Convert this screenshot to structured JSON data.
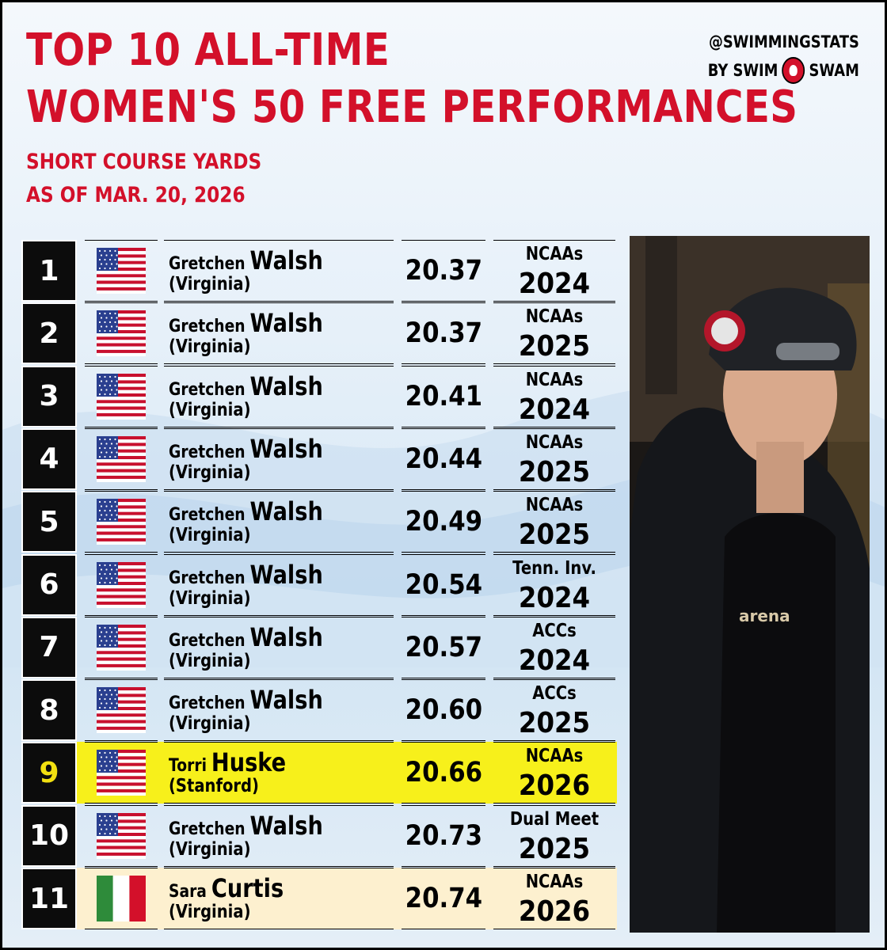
{
  "header": {
    "title_line1": "TOP 10 ALL-TIME",
    "title_line2": "WOMEN'S 50 FREE PERFORMANCES",
    "subtitle_line1": "SHORT COURSE YARDS",
    "subtitle_line2": "AS OF MAR. 20, 2026"
  },
  "brand": {
    "handle": "@SWIMMINGSTATS",
    "by_left": "BY SWIM",
    "by_right": "SWAM"
  },
  "colors": {
    "title": "#d3102a",
    "highlight": "#f7f01b",
    "highlight_alt": "#fdf0cf",
    "rank_bg": "#0c0c0c"
  },
  "rows": [
    {
      "rank": "1",
      "flag": "usa-flag",
      "first": "Gretchen",
      "last": "Walsh",
      "school": "(Virginia)",
      "time": "20.37",
      "meet": "NCAAs",
      "year": "2024"
    },
    {
      "rank": "2",
      "flag": "usa-flag",
      "first": "Gretchen",
      "last": "Walsh",
      "school": "(Virginia)",
      "time": "20.37",
      "meet": "NCAAs",
      "year": "2025"
    },
    {
      "rank": "3",
      "flag": "usa-flag",
      "first": "Gretchen",
      "last": "Walsh",
      "school": "(Virginia)",
      "time": "20.41",
      "meet": "NCAAs",
      "year": "2024"
    },
    {
      "rank": "4",
      "flag": "usa-flag",
      "first": "Gretchen",
      "last": "Walsh",
      "school": "(Virginia)",
      "time": "20.44",
      "meet": "NCAAs",
      "year": "2025"
    },
    {
      "rank": "5",
      "flag": "usa-flag",
      "first": "Gretchen",
      "last": "Walsh",
      "school": "(Virginia)",
      "time": "20.49",
      "meet": "NCAAs",
      "year": "2025"
    },
    {
      "rank": "6",
      "flag": "usa-flag",
      "first": "Gretchen",
      "last": "Walsh",
      "school": "(Virginia)",
      "time": "20.54",
      "meet": "Tenn. Inv.",
      "year": "2024"
    },
    {
      "rank": "7",
      "flag": "usa-flag",
      "first": "Gretchen",
      "last": "Walsh",
      "school": "(Virginia)",
      "time": "20.57",
      "meet": "ACCs",
      "year": "2024"
    },
    {
      "rank": "8",
      "flag": "usa-flag",
      "first": "Gretchen",
      "last": "Walsh",
      "school": "(Virginia)",
      "time": "20.60",
      "meet": "ACCs",
      "year": "2025"
    },
    {
      "rank": "9",
      "flag": "usa-flag",
      "first": "Torri",
      "last": "Huske",
      "school": "(Stanford)",
      "time": "20.66",
      "meet": "NCAAs",
      "year": "2026"
    },
    {
      "rank": "10",
      "flag": "usa-flag",
      "first": "Gretchen",
      "last": "Walsh",
      "school": "(Virginia)",
      "time": "20.73",
      "meet": "Dual Meet",
      "year": "2025"
    },
    {
      "rank": "11",
      "flag": "italy-flag",
      "first": "Sara",
      "last": "Curtis",
      "school": "(Virginia)",
      "time": "20.74",
      "meet": "NCAAs",
      "year": "2026"
    }
  ],
  "photo": {
    "suit_text": "arena",
    "cap_text": "arena"
  }
}
